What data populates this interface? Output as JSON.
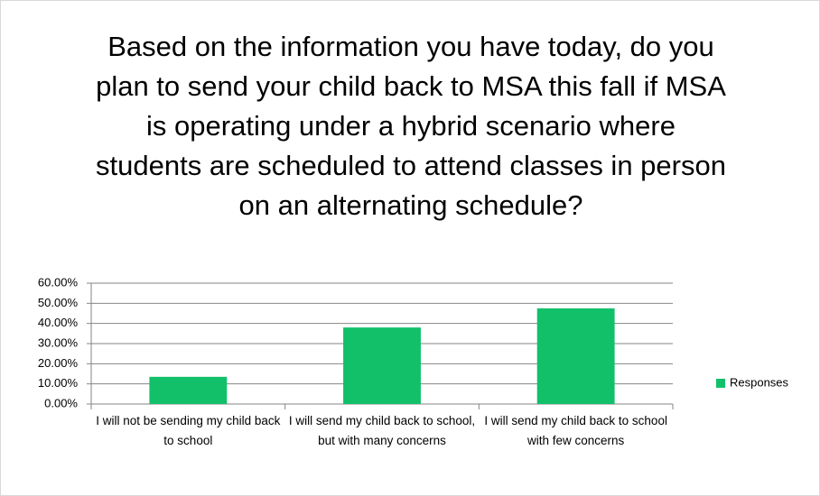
{
  "chart_data": {
    "type": "bar",
    "title": "Based on the information you have today, do you plan to send your child back to MSA this fall if MSA is operating under a hybrid scenario where students are scheduled to attend classes in person on an alternating schedule?",
    "categories": [
      "I will not be sending my child back to school",
      "I will send my child back to school, but with many concerns",
      "I will send my child back to school with few concerns"
    ],
    "series": [
      {
        "name": "Responses",
        "color": "#12c06a",
        "values": [
          13.5,
          38,
          47.5
        ]
      }
    ],
    "ylim": [
      0,
      60
    ],
    "yticks": [
      {
        "value": 0,
        "label": "0.00%"
      },
      {
        "value": 10,
        "label": "10.00%"
      },
      {
        "value": 20,
        "label": "20.00%"
      },
      {
        "value": 30,
        "label": "30.00%"
      },
      {
        "value": 40,
        "label": "40.00%"
      },
      {
        "value": 50,
        "label": "50.00%"
      },
      {
        "value": 60,
        "label": "60.00%"
      }
    ],
    "grid": true,
    "legend": "right"
  }
}
